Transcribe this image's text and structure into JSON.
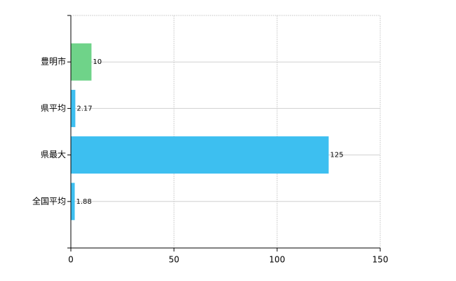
{
  "chart_data": {
    "type": "bar",
    "orientation": "horizontal",
    "categories": [
      "豊明市",
      "県平均",
      "県最大",
      "全国平均"
    ],
    "values": [
      10,
      2.17,
      125,
      1.88
    ],
    "colors": [
      "#6fd389",
      "#3dbff0",
      "#3dbff0",
      "#3dbff0"
    ],
    "xlim": [
      0,
      150
    ],
    "xticks": [
      0,
      50,
      100,
      150
    ],
    "grid": true
  }
}
